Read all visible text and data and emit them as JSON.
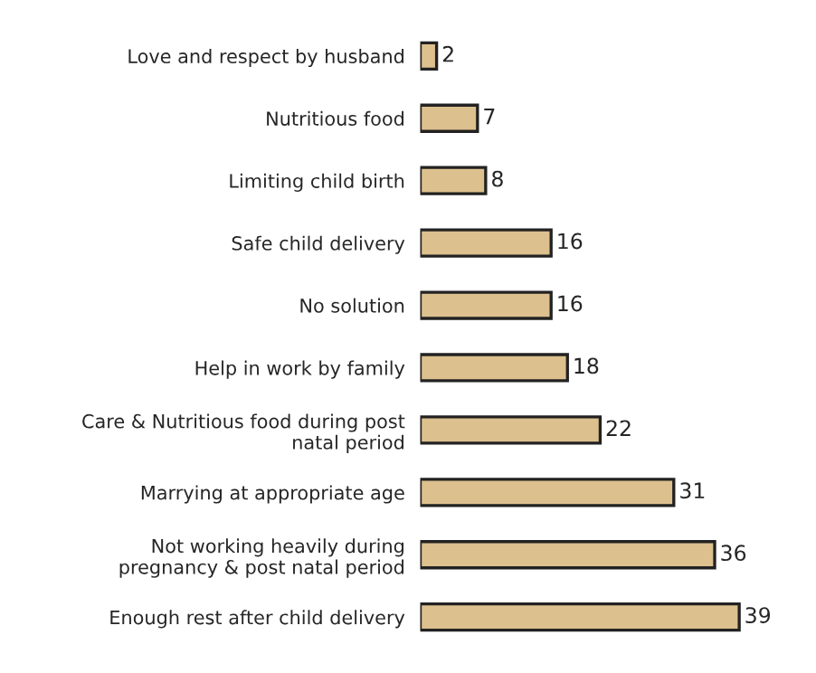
{
  "chart_data": {
    "type": "bar",
    "orientation": "horizontal",
    "categories": [
      "Love and respect by husband",
      "Nutritious food",
      "Limiting child birth",
      "Safe child delivery",
      "No solution",
      "Help in work by family",
      "Care & Nutritious food during post\nnatal period",
      "Marrying at appropriate age",
      "Not working heavily during\npregnancy & post natal period",
      "Enough rest after child delivery"
    ],
    "values": [
      2,
      7,
      8,
      16,
      16,
      18,
      22,
      31,
      36,
      39
    ],
    "color": "#dcc08e",
    "data_labels": true,
    "grid": false,
    "legend": false
  }
}
